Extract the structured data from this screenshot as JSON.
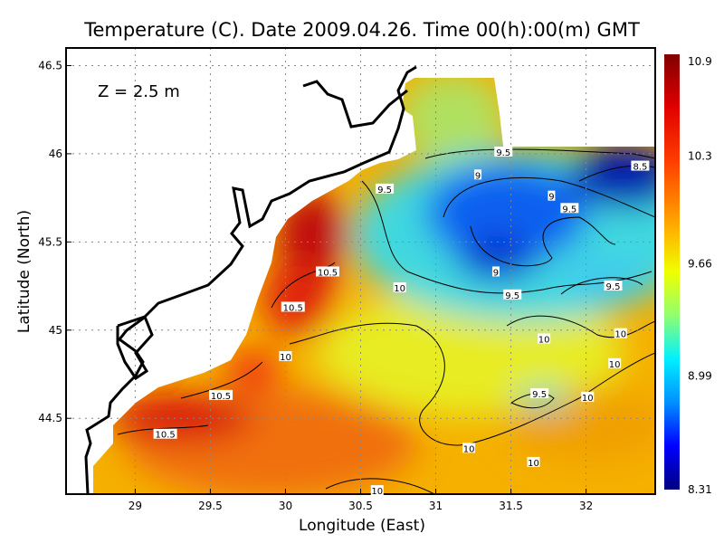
{
  "chart_data": {
    "type": "heatmap",
    "title": "Temperature (C). Date 2009.04.26. Time 00(h):00(m) GMT",
    "annotation": "Z = 2.5 m",
    "xlabel": "Longitude (East)",
    "ylabel": "Latitude (North)",
    "xlim": [
      28.54,
      32.46
    ],
    "ylim": [
      44.07,
      46.6
    ],
    "x_ticks": [
      "29",
      "29.5",
      "30",
      "30.5",
      "31",
      "31.5",
      "32"
    ],
    "x_tick_values": [
      29,
      29.5,
      30,
      30.5,
      31,
      31.5,
      32
    ],
    "y_ticks": [
      "46.5",
      "46",
      "45.5",
      "45",
      "44.5"
    ],
    "y_tick_values": [
      46.5,
      46,
      45.5,
      45,
      44.5
    ],
    "grid": true,
    "colorbar": {
      "range": [
        8.31,
        10.9
      ],
      "tick_labels": [
        "10.9",
        "10.3",
        "9.66",
        "8.99",
        "8.31"
      ],
      "tick_values": [
        10.9,
        10.3,
        9.66,
        8.99,
        8.31
      ],
      "colormap": [
        "#800000",
        "#ff0000",
        "#ff8000",
        "#ffff00",
        "#80ff80",
        "#00ffff",
        "#0080ff",
        "#0000ff",
        "#000080"
      ]
    },
    "contour_levels": [
      8.5,
      9,
      9.5,
      10,
      10.5
    ],
    "contour_labels": [
      {
        "text": "9.5",
        "lon": 31.45,
        "lat": 46.01
      },
      {
        "text": "9",
        "lon": 31.28,
        "lat": 45.88
      },
      {
        "text": "8.5",
        "lon": 32.36,
        "lat": 45.93
      },
      {
        "text": "9.5",
        "lon": 30.66,
        "lat": 45.8
      },
      {
        "text": "9",
        "lon": 31.77,
        "lat": 45.76
      },
      {
        "text": "9.5",
        "lon": 31.89,
        "lat": 45.69
      },
      {
        "text": "9",
        "lon": 31.4,
        "lat": 45.33
      },
      {
        "text": "9.5",
        "lon": 31.51,
        "lat": 45.2
      },
      {
        "text": "9.5",
        "lon": 32.18,
        "lat": 45.25
      },
      {
        "text": "10.5",
        "lon": 30.28,
        "lat": 45.33
      },
      {
        "text": "10.5",
        "lon": 30.05,
        "lat": 45.13
      },
      {
        "text": "10",
        "lon": 30.76,
        "lat": 45.24
      },
      {
        "text": "10",
        "lon": 30.0,
        "lat": 44.85
      },
      {
        "text": "10",
        "lon": 31.72,
        "lat": 44.95
      },
      {
        "text": "10",
        "lon": 32.23,
        "lat": 44.98
      },
      {
        "text": "10",
        "lon": 32.19,
        "lat": 44.81
      },
      {
        "text": "10.5",
        "lon": 29.57,
        "lat": 44.63
      },
      {
        "text": "9.5",
        "lon": 31.69,
        "lat": 44.64
      },
      {
        "text": "10",
        "lon": 32.01,
        "lat": 44.62
      },
      {
        "text": "10.5",
        "lon": 29.2,
        "lat": 44.41
      },
      {
        "text": "10",
        "lon": 31.22,
        "lat": 44.33
      },
      {
        "text": "10",
        "lon": 31.65,
        "lat": 44.25
      },
      {
        "text": "10",
        "lon": 30.61,
        "lat": 44.09
      }
    ]
  }
}
